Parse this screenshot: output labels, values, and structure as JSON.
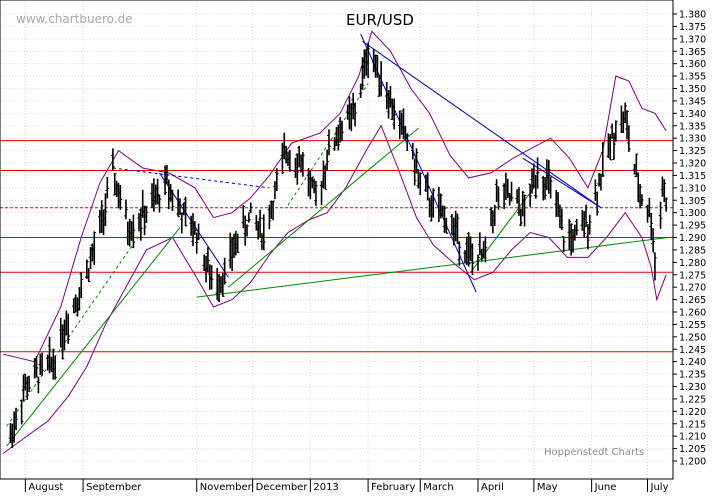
{
  "watermark": "www.chartbuero.de",
  "credit": "Hoppenstedt Charts",
  "chart_data": {
    "type": "ohlc",
    "title": "EUR/USD",
    "xlabel": "",
    "ylabel": "",
    "ylim": [
      1.2,
      1.38
    ],
    "y_ticks": [
      1.2,
      1.205,
      1.21,
      1.215,
      1.22,
      1.225,
      1.23,
      1.235,
      1.24,
      1.245,
      1.25,
      1.255,
      1.26,
      1.265,
      1.27,
      1.275,
      1.28,
      1.285,
      1.29,
      1.295,
      1.3,
      1.305,
      1.31,
      1.315,
      1.32,
      1.325,
      1.33,
      1.335,
      1.34,
      1.345,
      1.35,
      1.355,
      1.36,
      1.365,
      1.37,
      1.375,
      1.38
    ],
    "x_tick_labels": [
      "August",
      "September",
      "November",
      "December",
      "2013",
      "February",
      "March",
      "April",
      "May",
      "June",
      "July"
    ],
    "x_tick_dates": [
      "2012-08-01",
      "2012-09-01",
      "2012-11-01",
      "2012-12-01",
      "2013-01-01",
      "2013-02-01",
      "2013-03-01",
      "2013-04-01",
      "2013-05-01",
      "2013-06-01",
      "2013-07-01"
    ],
    "x_range": [
      "2012-07-20",
      "2013-07-12"
    ],
    "grid": true,
    "price_path": [
      [
        "2012-07-24",
        1.21
      ],
      [
        "2012-08-01",
        1.23
      ],
      [
        "2012-08-08",
        1.235
      ],
      [
        "2012-08-16",
        1.24
      ],
      [
        "2012-08-24",
        1.258
      ],
      [
        "2012-08-31",
        1.27
      ],
      [
        "2012-09-07",
        1.285
      ],
      [
        "2012-09-14",
        1.305
      ],
      [
        "2012-09-17",
        1.316
      ],
      [
        "2012-09-25",
        1.294
      ],
      [
        "2012-10-05",
        1.3
      ],
      [
        "2012-10-16",
        1.312
      ],
      [
        "2012-10-25",
        1.298
      ],
      [
        "2012-11-01",
        1.292
      ],
      [
        "2012-11-09",
        1.272
      ],
      [
        "2012-11-16",
        1.275
      ],
      [
        "2012-11-23",
        1.29
      ],
      [
        "2012-11-30",
        1.298
      ],
      [
        "2012-12-07",
        1.292
      ],
      [
        "2012-12-14",
        1.31
      ],
      [
        "2012-12-19",
        1.325
      ],
      [
        "2012-12-28",
        1.32
      ],
      [
        "2013-01-04",
        1.304
      ],
      [
        "2013-01-11",
        1.325
      ],
      [
        "2013-01-18",
        1.335
      ],
      [
        "2013-01-25",
        1.34
      ],
      [
        "2013-02-01",
        1.365
      ],
      [
        "2013-02-08",
        1.355
      ],
      [
        "2013-02-15",
        1.34
      ],
      [
        "2013-02-22",
        1.33
      ],
      [
        "2013-03-01",
        1.312
      ],
      [
        "2013-03-08",
        1.302
      ],
      [
        "2013-03-15",
        1.298
      ],
      [
        "2013-03-22",
        1.29
      ],
      [
        "2013-03-28",
        1.282
      ],
      [
        "2013-04-04",
        1.282
      ],
      [
        "2013-04-11",
        1.306
      ],
      [
        "2013-04-18",
        1.306
      ],
      [
        "2013-04-26",
        1.3
      ],
      [
        "2013-05-03",
        1.318
      ],
      [
        "2013-05-10",
        1.31
      ],
      [
        "2013-05-17",
        1.29
      ],
      [
        "2013-05-24",
        1.29
      ],
      [
        "2013-05-31",
        1.298
      ],
      [
        "2013-06-07",
        1.318
      ],
      [
        "2013-06-14",
        1.335
      ],
      [
        "2013-06-19",
        1.338
      ],
      [
        "2013-06-26",
        1.31
      ],
      [
        "2013-07-03",
        1.298
      ],
      [
        "2013-07-05",
        1.28
      ],
      [
        "2013-07-09",
        1.31
      ],
      [
        "2013-07-11",
        1.306
      ]
    ],
    "horizontal_lines": [
      {
        "y": 1.329,
        "color": "#e00000",
        "style": "solid"
      },
      {
        "y": 1.317,
        "color": "#e00000",
        "style": "solid"
      },
      {
        "y": 1.302,
        "color": "#e00000",
        "style": "dashed"
      },
      {
        "y": 1.29,
        "color": "#e00000",
        "style": "solid"
      },
      {
        "y": 1.276,
        "color": "#e00000",
        "style": "solid"
      },
      {
        "y": 1.244,
        "color": "#e00000",
        "style": "solid"
      }
    ],
    "trend_lines": [
      {
        "from": [
          "2012-11-01",
          1.266
        ],
        "to": [
          "2013-07-12",
          1.29
        ],
        "color": "#008800",
        "style": "solid"
      },
      {
        "from": [
          "2012-07-22",
          1.206
        ],
        "to": [
          "2012-10-23",
          1.294
        ],
        "color": "#008800",
        "style": "solid"
      },
      {
        "from": [
          "2012-07-22",
          1.214
        ],
        "to": [
          "2012-10-05",
          1.295
        ],
        "color": "#008800",
        "style": "dashed"
      },
      {
        "from": [
          "2012-11-18",
          1.27
        ],
        "to": [
          "2013-02-28",
          1.334
        ],
        "color": "#008800",
        "style": "solid"
      },
      {
        "from": [
          "2012-12-20",
          1.303
        ],
        "to": [
          "2013-02-01",
          1.352
        ],
        "color": "#008800",
        "style": "dashed"
      },
      {
        "from": [
          "2013-03-28",
          1.276
        ],
        "to": [
          "2013-05-01",
          1.31
        ],
        "color": "#008800",
        "style": "solid"
      },
      {
        "from": [
          "2013-01-28",
          1.372
        ],
        "to": [
          "2013-03-31",
          1.268
        ],
        "color": "#0000cc",
        "style": "solid"
      },
      {
        "from": [
          "2013-01-29",
          1.369
        ],
        "to": [
          "2013-06-06",
          1.302
        ],
        "color": "#0000cc",
        "style": "solid"
      },
      {
        "from": [
          "2012-10-12",
          1.316
        ],
        "to": [
          "2012-11-18",
          1.274
        ],
        "color": "#0000cc",
        "style": "solid"
      },
      {
        "from": [
          "2012-09-17",
          1.318
        ],
        "to": [
          "2012-12-10",
          1.31
        ],
        "color": "#0000cc",
        "style": "dashed"
      },
      {
        "from": [
          "2013-04-25",
          1.322
        ],
        "to": [
          "2013-06-06",
          1.302
        ],
        "color": "#0000cc",
        "style": "solid"
      }
    ],
    "bollinger_upper": [
      [
        "2012-07-20",
        1.243
      ],
      [
        "2012-08-06",
        1.24
      ],
      [
        "2012-08-20",
        1.262
      ],
      [
        "2012-08-31",
        1.29
      ],
      [
        "2012-09-10",
        1.312
      ],
      [
        "2012-09-20",
        1.325
      ],
      [
        "2012-10-03",
        1.318
      ],
      [
        "2012-10-17",
        1.316
      ],
      [
        "2012-10-31",
        1.31
      ],
      [
        "2012-11-10",
        1.298
      ],
      [
        "2012-11-20",
        1.3
      ],
      [
        "2012-11-30",
        1.306
      ],
      [
        "2012-12-10",
        1.315
      ],
      [
        "2012-12-22",
        1.328
      ],
      [
        "2013-01-06",
        1.332
      ],
      [
        "2013-01-17",
        1.34
      ],
      [
        "2013-01-27",
        1.355
      ],
      [
        "2013-02-03",
        1.373
      ],
      [
        "2013-02-13",
        1.365
      ],
      [
        "2013-02-24",
        1.35
      ],
      [
        "2013-03-06",
        1.34
      ],
      [
        "2013-03-17",
        1.323
      ],
      [
        "2013-03-27",
        1.314
      ],
      [
        "2013-04-08",
        1.316
      ],
      [
        "2013-04-20",
        1.322
      ],
      [
        "2013-04-30",
        1.326
      ],
      [
        "2013-05-10",
        1.33
      ],
      [
        "2013-05-20",
        1.322
      ],
      [
        "2013-05-30",
        1.31
      ],
      [
        "2013-06-07",
        1.325
      ],
      [
        "2013-06-14",
        1.355
      ],
      [
        "2013-06-21",
        1.353
      ],
      [
        "2013-06-28",
        1.342
      ],
      [
        "2013-07-05",
        1.34
      ],
      [
        "2013-07-11",
        1.333
      ]
    ],
    "bollinger_lower": [
      [
        "2012-07-20",
        1.203
      ],
      [
        "2012-07-31",
        1.209
      ],
      [
        "2012-08-13",
        1.216
      ],
      [
        "2012-08-24",
        1.226
      ],
      [
        "2012-09-03",
        1.238
      ],
      [
        "2012-09-13",
        1.255
      ],
      [
        "2012-09-24",
        1.27
      ],
      [
        "2012-10-05",
        1.285
      ],
      [
        "2012-10-19",
        1.29
      ],
      [
        "2012-10-31",
        1.275
      ],
      [
        "2012-11-10",
        1.262
      ],
      [
        "2012-11-20",
        1.265
      ],
      [
        "2012-11-30",
        1.272
      ],
      [
        "2012-12-10",
        1.283
      ],
      [
        "2012-12-20",
        1.292
      ],
      [
        "2012-12-31",
        1.297
      ],
      [
        "2013-01-10",
        1.3
      ],
      [
        "2013-01-20",
        1.31
      ],
      [
        "2013-01-31",
        1.325
      ],
      [
        "2013-02-08",
        1.335
      ],
      [
        "2013-02-17",
        1.318
      ],
      [
        "2013-02-27",
        1.298
      ],
      [
        "2013-03-08",
        1.287
      ],
      [
        "2013-03-20",
        1.279
      ],
      [
        "2013-03-30",
        1.273
      ],
      [
        "2013-04-09",
        1.276
      ],
      [
        "2013-04-19",
        1.285
      ],
      [
        "2013-04-29",
        1.292
      ],
      [
        "2013-05-09",
        1.29
      ],
      [
        "2013-05-19",
        1.282
      ],
      [
        "2013-05-30",
        1.282
      ],
      [
        "2013-06-09",
        1.29
      ],
      [
        "2013-06-19",
        1.3
      ],
      [
        "2013-06-28",
        1.29
      ],
      [
        "2013-07-03",
        1.278
      ],
      [
        "2013-07-06",
        1.265
      ],
      [
        "2013-07-11",
        1.275
      ]
    ]
  }
}
